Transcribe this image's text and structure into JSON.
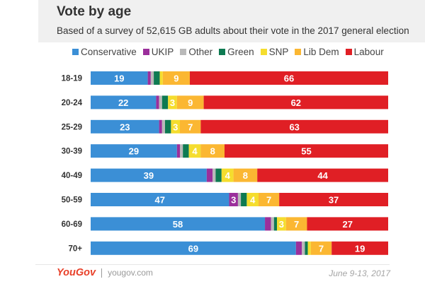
{
  "chart_data": {
    "type": "bar",
    "orientation": "horizontal",
    "stacked": true,
    "title": "Vote by age",
    "subtitle": "Based of a survey of 52,615 GB adults about their vote in the 2017 general election",
    "categories": [
      "18-19",
      "20-24",
      "25-29",
      "30-39",
      "40-49",
      "50-59",
      "60-69",
      "70+"
    ],
    "series": [
      {
        "name": "Conservative",
        "color": "#3b8fd6",
        "values": [
          19,
          22,
          23,
          29,
          39,
          47,
          58,
          69
        ],
        "labels": [
          "19",
          "22",
          "23",
          "29",
          "39",
          "47",
          "58",
          "69"
        ]
      },
      {
        "name": "UKIP",
        "color": "#9b2f9b",
        "values": [
          1,
          1,
          1,
          1,
          2,
          3,
          2,
          2
        ],
        "labels": [
          "",
          "",
          "",
          "",
          "",
          "3",
          "",
          ""
        ]
      },
      {
        "name": "Other",
        "color": "#b9b9b9",
        "values": [
          1,
          1,
          1,
          1,
          1,
          1,
          1,
          1
        ],
        "labels": [
          "",
          "",
          "",
          "",
          "",
          "",
          "",
          ""
        ]
      },
      {
        "name": "Green",
        "color": "#0e7a52",
        "values": [
          2,
          2,
          2,
          2,
          2,
          2,
          1,
          1
        ],
        "labels": [
          "",
          "",
          "",
          "",
          "",
          "",
          "",
          ""
        ]
      },
      {
        "name": "SNP",
        "color": "#f5dd2e",
        "values": [
          1,
          3,
          3,
          4,
          4,
          4,
          3,
          1
        ],
        "labels": [
          "",
          "3",
          "3",
          "4",
          "4",
          "4",
          "3",
          ""
        ]
      },
      {
        "name": "Lib Dem",
        "color": "#fbb732",
        "values": [
          9,
          9,
          7,
          8,
          8,
          7,
          7,
          7
        ],
        "labels": [
          "9",
          "9",
          "7",
          "8",
          "8",
          "7",
          "7",
          "7"
        ]
      },
      {
        "name": "Labour",
        "color": "#e01f25",
        "values": [
          66,
          62,
          63,
          55,
          44,
          37,
          27,
          19
        ],
        "labels": [
          "66",
          "62",
          "63",
          "55",
          "44",
          "37",
          "27",
          "19"
        ]
      }
    ],
    "xlim": [
      0,
      100
    ],
    "legend_position": "top",
    "grid": false
  },
  "footer": {
    "brand": "YouGov",
    "site": "yougov.com",
    "date": "June 9-13, 2017"
  }
}
